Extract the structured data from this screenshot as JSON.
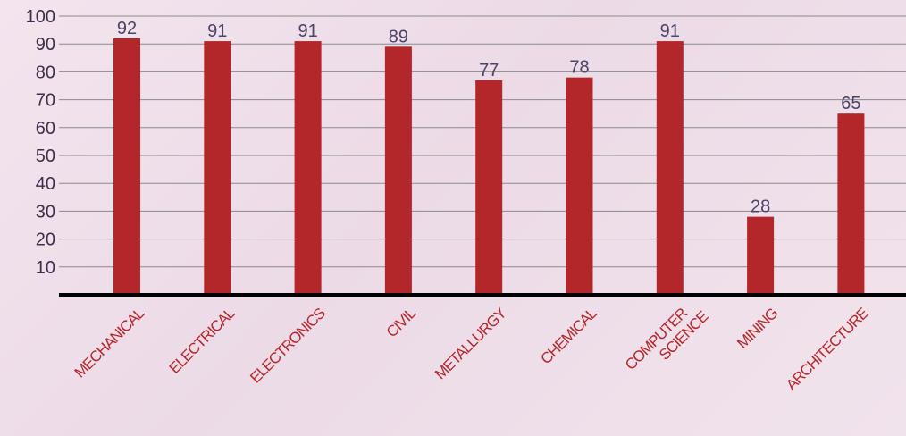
{
  "chart_data": {
    "type": "bar",
    "categories": [
      "MECHANICAL",
      "ELECTRICAL",
      "ELECTRONICS",
      "CIVIL",
      "METALLURGY",
      "CHEMICAL",
      "COMPUTER SCIENCE",
      "MINING",
      "ARCHITECTURE"
    ],
    "values": [
      92,
      91,
      91,
      89,
      77,
      78,
      91,
      28,
      65
    ],
    "yticks": [
      10,
      20,
      30,
      40,
      50,
      60,
      70,
      80,
      90,
      100
    ],
    "ylim": [
      0,
      100
    ],
    "grid": true,
    "bar_color": "#b3262a",
    "axis_color": "#000000",
    "grid_color": "#8a8a8a",
    "category_label_color": "#b3262a",
    "value_label_color": "#4b4466"
  }
}
